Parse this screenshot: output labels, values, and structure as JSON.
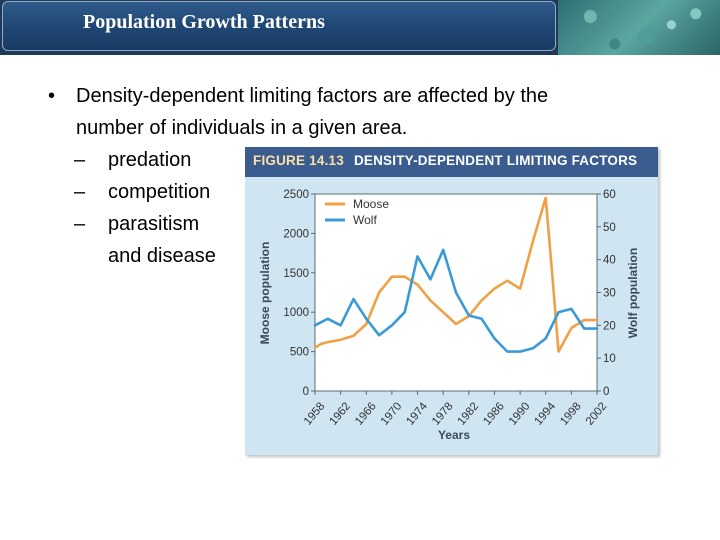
{
  "slide": {
    "title": "Population Growth Patterns",
    "bullet": "Density-dependent limiting factors are affected by the number of individuals in a given area.",
    "bullet_line1": "Density-dependent limiting factors are affected by the",
    "bullet_line2": "number of individuals in a given area.",
    "bullet_marker": "•",
    "dash": "–",
    "subitems": [
      "predation",
      "competition",
      "parasitism",
      "and disease"
    ]
  },
  "figure": {
    "label": "FIGURE 14.13",
    "title": "DENSITY-DEPENDENT LIMITING FACTORS"
  },
  "colors": {
    "header_bg": "#1d3a5c",
    "moose": "#f0a045",
    "wolf": "#3a9ad6",
    "figure_bg": "#cfe6f2",
    "figure_band": "#3a5c8f"
  },
  "chart_data": {
    "type": "line",
    "title": "DENSITY-DEPENDENT LIMITING FACTORS",
    "xlabel": "Years",
    "ylabel": "Moose population",
    "y2label": "Wolf population",
    "xlim": [
      1958,
      2002
    ],
    "ylim": [
      0,
      2500
    ],
    "y2lim": [
      0,
      60
    ],
    "xticks": [
      1958,
      1962,
      1966,
      1970,
      1974,
      1978,
      1982,
      1986,
      1990,
      1994,
      1998,
      2002
    ],
    "yticks": [
      0,
      500,
      1000,
      1500,
      2000,
      2500
    ],
    "y2ticks": [
      0,
      10,
      20,
      30,
      40,
      50,
      60
    ],
    "legend": "top-left",
    "series": [
      {
        "name": "Moose",
        "axis": "left",
        "x": [
          1958,
          1959,
          1960,
          1962,
          1964,
          1966,
          1968,
          1970,
          1972,
          1974,
          1976,
          1978,
          1980,
          1982,
          1984,
          1986,
          1988,
          1990,
          1992,
          1994,
          1995,
          1996,
          1998,
          2000,
          2002
        ],
        "values": [
          550,
          600,
          620,
          650,
          700,
          850,
          1250,
          1450,
          1450,
          1350,
          1150,
          1000,
          850,
          950,
          1150,
          1300,
          1400,
          1300,
          1900,
          2450,
          1500,
          500,
          800,
          900,
          900
        ]
      },
      {
        "name": "Wolf",
        "axis": "right",
        "x": [
          1958,
          1960,
          1962,
          1964,
          1966,
          1968,
          1970,
          1972,
          1974,
          1976,
          1978,
          1980,
          1982,
          1984,
          1986,
          1988,
          1990,
          1992,
          1994,
          1996,
          1998,
          2000,
          2002
        ],
        "values": [
          20,
          22,
          20,
          28,
          22,
          17,
          20,
          24,
          41,
          34,
          43,
          30,
          23,
          22,
          16,
          12,
          12,
          13,
          16,
          24,
          25,
          19,
          19
        ]
      }
    ]
  }
}
